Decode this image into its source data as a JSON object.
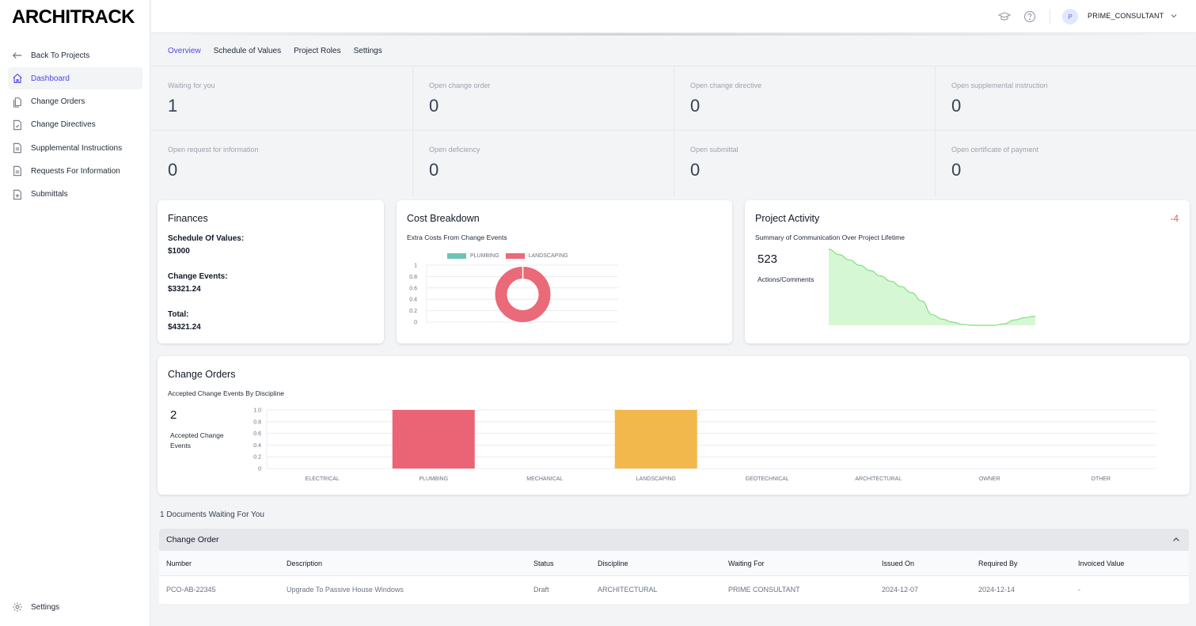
{
  "app": {
    "logo": "ARCHITRACK"
  },
  "sidebar": {
    "items": [
      {
        "label": "Back To Projects",
        "icon": "arrow-left-icon"
      },
      {
        "label": "Dashboard",
        "icon": "home-icon"
      },
      {
        "label": "Change Orders",
        "icon": "documents-icon"
      },
      {
        "label": "Change Directives",
        "icon": "document-check-icon"
      },
      {
        "label": "Supplemental Instructions",
        "icon": "document-text-icon"
      },
      {
        "label": "Requests For Information",
        "icon": "document-text-icon"
      },
      {
        "label": "Submittals",
        "icon": "document-add-icon"
      }
    ],
    "settings_label": "Settings"
  },
  "topbar": {
    "avatar_initial": "P",
    "user_name": "PRIME_CONSULTANT"
  },
  "tabs": [
    "Overview",
    "Schedule of Values",
    "Project Roles",
    "Settings"
  ],
  "stats": [
    {
      "label": "Waiting for you",
      "value": "1"
    },
    {
      "label": "Open change order",
      "value": "0"
    },
    {
      "label": "Open change directive",
      "value": "0"
    },
    {
      "label": "Open supplemental instruction",
      "value": "0"
    },
    {
      "label": "Open request for information",
      "value": "0"
    },
    {
      "label": "Open deficiency",
      "value": "0"
    },
    {
      "label": "Open submittal",
      "value": "0"
    },
    {
      "label": "Open certificate of payment",
      "value": "0"
    }
  ],
  "finances": {
    "title": "Finances",
    "sov_label": "Schedule Of Values:",
    "sov_value": "$1000",
    "ce_label": "Change Events:",
    "ce_value": "$3321.24",
    "total_label": "Total:",
    "total_value": "$4321.24"
  },
  "cost_breakdown": {
    "title": "Cost Breakdown",
    "subtitle": "Extra Costs From Change Events"
  },
  "project_activity": {
    "title": "Project Activity",
    "delta": "-4",
    "subtitle": "Summary of Communication Over Project Lifetime",
    "count": "523",
    "count_label": "Actions/Comments"
  },
  "change_orders": {
    "title": "Change Orders",
    "subtitle": "Accepted Change Events By Discipline",
    "count": "2",
    "count_label_1": "Accepted Change",
    "count_label_2": "Events"
  },
  "chart_data": [
    {
      "type": "pie",
      "variant": "doughnut",
      "categories": [
        "PLUMBING",
        "LANDSCAPING"
      ],
      "values": [
        0,
        1
      ],
      "colors": [
        "#6cc4b8",
        "#ea6a79"
      ],
      "yticks": [
        "0",
        "0.2",
        "0.4",
        "0.6",
        "0.8",
        "1"
      ],
      "legend": "top"
    },
    {
      "type": "area",
      "x": [
        0,
        1,
        2,
        3,
        4,
        5,
        6,
        7,
        8,
        9,
        10,
        11,
        12,
        13,
        14,
        15,
        16,
        17,
        18,
        19,
        20
      ],
      "values": [
        1.0,
        0.93,
        0.86,
        0.79,
        0.72,
        0.65,
        0.58,
        0.51,
        0.43,
        0.32,
        0.14,
        0.08,
        0.04,
        0.01,
        0.0,
        0.0,
        0.0,
        0.02,
        0.07,
        0.1,
        0.12
      ],
      "ylim": [
        0,
        1
      ],
      "color": "#7ee07e",
      "fill": "#d6f7d4"
    },
    {
      "type": "bar",
      "categories": [
        "ELECTRICAL",
        "PLUMBING",
        "MECHANICAL",
        "LANDSCAPING",
        "GEOTECHNICAL",
        "ARCHITECTURAL",
        "OWNER",
        "OTHER"
      ],
      "values": [
        0,
        1,
        0,
        1,
        0,
        0,
        0,
        0
      ],
      "colors": [
        "#9ca3af",
        "#ea6475",
        "#9ca3af",
        "#f2b84b",
        "#9ca3af",
        "#9ca3af",
        "#9ca3af",
        "#9ca3af"
      ],
      "yticks": [
        "0",
        "0.2",
        "0.4",
        "0.6",
        "0.8",
        "1.0"
      ],
      "ylim": [
        0,
        1
      ]
    }
  ],
  "documents_waiting": {
    "title": "1 Documents Waiting For You",
    "group": "Change Order",
    "columns": [
      "Number",
      "Description",
      "Status",
      "Discipline",
      "Waiting For",
      "Issued On",
      "Required By",
      "Invoiced Value"
    ],
    "rows": [
      [
        "PCO-AB-22345",
        "Upgrade To Passive House Windows",
        "Draft",
        "ARCHITECTURAL",
        "PRIME CONSULTANT",
        "2024-12-07",
        "2024-12-14",
        "-"
      ]
    ]
  }
}
